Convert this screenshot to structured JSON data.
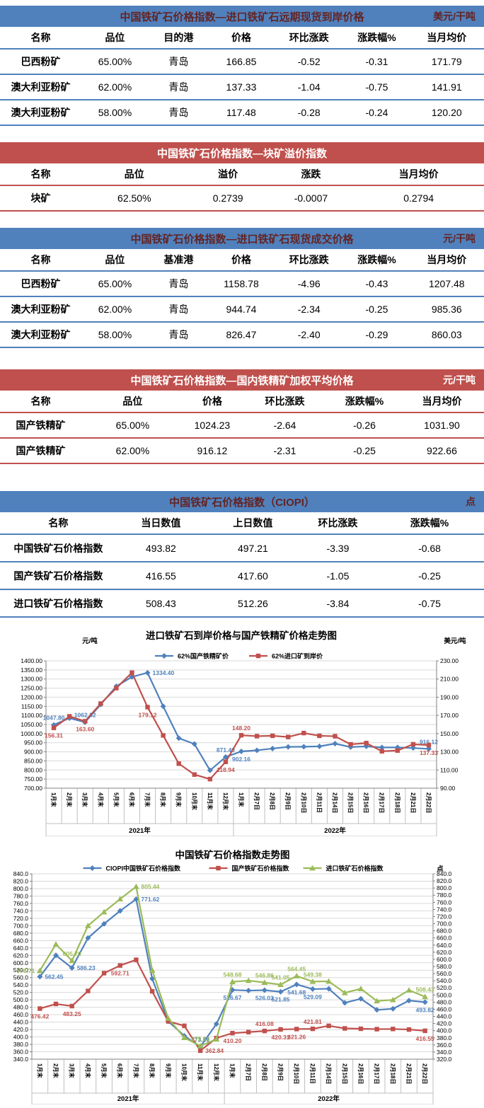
{
  "tables": [
    {
      "theme": "blue",
      "title": "中国铁矿石价格指数—进口铁矿石远期现货到岸价格",
      "unit": "美元/干吨",
      "columns": [
        "名称",
        "品位",
        "目的港",
        "价格",
        "环比涨跌",
        "涨跌幅%",
        "当月均价"
      ],
      "rows": [
        [
          "巴西粉矿",
          "65.00%",
          "青岛",
          "166.85",
          "-0.52",
          "-0.31",
          "171.79"
        ],
        [
          "澳大利亚粉矿",
          "62.00%",
          "青岛",
          "137.33",
          "-1.04",
          "-0.75",
          "141.91"
        ],
        [
          "澳大利亚粉矿",
          "58.00%",
          "青岛",
          "117.48",
          "-0.28",
          "-0.24",
          "120.20"
        ]
      ]
    },
    {
      "theme": "red",
      "title": "中国铁矿石价格指数—块矿溢价指数",
      "unit": "",
      "columns": [
        "名称",
        "品位",
        "溢价",
        "涨跌",
        "当月均价"
      ],
      "rows": [
        [
          "块矿",
          "62.50%",
          "0.2739",
          "-0.0007",
          "0.2794"
        ]
      ]
    },
    {
      "theme": "blue",
      "title": "中国铁矿石价格指数—进口铁矿石现货成交价格",
      "unit": "元/干吨",
      "columns": [
        "名称",
        "品位",
        "基准港",
        "价格",
        "环比涨跌",
        "涨跌幅%",
        "当月均价"
      ],
      "rows": [
        [
          "巴西粉矿",
          "65.00%",
          "青岛",
          "1158.78",
          "-4.96",
          "-0.43",
          "1207.48"
        ],
        [
          "澳大利亚粉矿",
          "62.00%",
          "青岛",
          "944.74",
          "-2.34",
          "-0.25",
          "985.36"
        ],
        [
          "澳大利亚粉矿",
          "58.00%",
          "青岛",
          "826.47",
          "-2.40",
          "-0.29",
          "860.03"
        ]
      ]
    },
    {
      "theme": "red",
      "title": "中国铁矿石价格指数—国内铁精矿加权平均价格",
      "unit": "元/干吨",
      "columns": [
        "名称",
        "品位",
        "价格",
        "环比涨跌",
        "涨跌幅%",
        "当月均价"
      ],
      "rows": [
        [
          "国产铁精矿",
          "65.00%",
          "1024.23",
          "-2.64",
          "-0.26",
          "1031.90"
        ],
        [
          "国产铁精矿",
          "62.00%",
          "916.12",
          "-2.31",
          "-0.25",
          "922.66"
        ]
      ]
    },
    {
      "theme": "blue",
      "title": "中国铁矿石价格指数（CIOPI）",
      "unit": "点",
      "columns": [
        "名称",
        "当日数值",
        "上日数值",
        "环比涨跌",
        "涨跌幅%"
      ],
      "rows": [
        [
          "中国铁矿石价格指数",
          "493.82",
          "497.21",
          "-3.39",
          "-0.68"
        ],
        [
          "国产铁矿石价格指数",
          "416.55",
          "417.60",
          "-1.05",
          "-0.25"
        ],
        [
          "进口铁矿石价格指数",
          "508.43",
          "512.26",
          "-3.84",
          "-0.75"
        ]
      ]
    }
  ],
  "chart_data": [
    {
      "type": "line",
      "title": "进口铁矿石到岸价格与国产铁精矿价格走势图",
      "categories": [
        "1月末",
        "2月末",
        "3月末",
        "4月末",
        "5月末",
        "6月末",
        "7月末",
        "8月末",
        "9月末",
        "10月末",
        "11月末",
        "12月末",
        "1月末",
        "2月7日",
        "2月8日",
        "2月9日",
        "2月10日",
        "2月11日",
        "2月14日",
        "2月15日",
        "2月16日",
        "2月17日",
        "2月18日",
        "2月21日",
        "2月22日"
      ],
      "year_groups": [
        {
          "label": "2021年",
          "count": 12
        },
        {
          "label": "2022年",
          "count": 13
        }
      ],
      "left_axis": {
        "title": "元/吨",
        "min": 700,
        "max": 1400,
        "step": 50,
        "decimals": 2
      },
      "right_axis": {
        "title": "美元/吨",
        "min": 90,
        "max": 230,
        "step": 20,
        "decimals": 2
      },
      "grid": true,
      "legend_position": "top",
      "series": [
        {
          "name": "62%国产铁精矿价",
          "color": "#4F81BD",
          "marker": "diamond",
          "axis": "left",
          "values": [
            1047.8,
            1085,
            1062.82,
            1160,
            1260,
            1312,
            1334.4,
            1150,
            975,
            943,
            798,
            871.4,
            902.16,
            908,
            918,
            927,
            928,
            930,
            945,
            926,
            930,
            924,
            924,
            921,
            916.12
          ],
          "point_labels": [
            {
              "i": 0,
              "text": "1047.80",
              "pos": "above"
            },
            {
              "i": 2,
              "text": "1062.82",
              "pos": "above"
            },
            {
              "i": 6,
              "text": "1334.40",
              "pos": "right"
            },
            {
              "i": 11,
              "text": "871.40",
              "pos": "above"
            },
            {
              "i": 12,
              "text": "902.16",
              "pos": "below"
            },
            {
              "i": 24,
              "text": "916.12",
              "pos": "above"
            }
          ]
        },
        {
          "name": "62%进口矿到岸价",
          "color": "#C0504D",
          "marker": "square",
          "axis": "right",
          "values": [
            156.31,
            169,
            163.6,
            183,
            200,
            217,
            179.12,
            148,
            117,
            105,
            100,
            118.94,
            148.2,
            147.2,
            147.6,
            146.3,
            150.6,
            147.6,
            147.1,
            138.2,
            139.6,
            130.6,
            131.4,
            138.3,
            137.33
          ],
          "point_labels": [
            {
              "i": 0,
              "text": "156.31",
              "pos": "below"
            },
            {
              "i": 2,
              "text": "163.60",
              "pos": "below"
            },
            {
              "i": 6,
              "text": "179.12",
              "pos": "below"
            },
            {
              "i": 11,
              "text": "118.94",
              "pos": "below"
            },
            {
              "i": 12,
              "text": "148.20",
              "pos": "above"
            },
            {
              "i": 24,
              "text": "137.33",
              "pos": "below"
            }
          ]
        }
      ]
    },
    {
      "type": "line",
      "title": "中国铁矿石价格指数走势图",
      "categories": [
        "1月末",
        "2月末",
        "3月末",
        "4月末",
        "5月末",
        "6月末",
        "7月末",
        "8月末",
        "9月末",
        "10月末",
        "11月末",
        "12月末",
        "1月末",
        "2月7日",
        "2月8日",
        "2月9日",
        "2月10日",
        "2月11日",
        "2月14日",
        "2月15日",
        "2月16日",
        "2月17日",
        "2月18日",
        "2月21日",
        "2月22日"
      ],
      "year_groups": [
        {
          "label": "2021年",
          "count": 12
        },
        {
          "label": "2022年",
          "count": 13
        }
      ],
      "left_axis": {
        "title": "",
        "min": 340,
        "max": 840,
        "step": 20,
        "decimals": 1
      },
      "right_axis": {
        "title": "点",
        "min": 320,
        "max": 840,
        "step": 20,
        "decimals": 1
      },
      "grid": true,
      "legend_position": "top",
      "series": [
        {
          "name": "CIOPI中国铁矿石价格指数",
          "color": "#4F81BD",
          "marker": "diamond",
          "axis": "left",
          "values": [
            562.45,
            620,
            586.23,
            667,
            705,
            740,
            771.62,
            557,
            442,
            403,
            373.59,
            435,
            526.67,
            525,
            526.03,
            521.85,
            541.68,
            529.09,
            530,
            492,
            503,
            473,
            476,
            498,
            493.82
          ],
          "point_labels": [
            {
              "i": 0,
              "text": "562.45",
              "pos": "right"
            },
            {
              "i": 2,
              "text": "586.23",
              "pos": "right"
            },
            {
              "i": 6,
              "text": "771.62",
              "pos": "right"
            },
            {
              "i": 10,
              "text": "373.59",
              "pos": "above"
            },
            {
              "i": 12,
              "text": "526.67",
              "pos": "below"
            },
            {
              "i": 14,
              "text": "526.03",
              "pos": "below"
            },
            {
              "i": 15,
              "text": "521.85",
              "pos": "below"
            },
            {
              "i": 16,
              "text": "541.68",
              "pos": "below"
            },
            {
              "i": 17,
              "text": "529.09",
              "pos": "below"
            },
            {
              "i": 24,
              "text": "493.82",
              "pos": "below"
            }
          ]
        },
        {
          "name": "国产铁矿石价格指数",
          "color": "#C0504D",
          "marker": "square",
          "axis": "left",
          "values": [
            476.42,
            489,
            483.25,
            524,
            572,
            592.71,
            608,
            523,
            442,
            430,
            362.84,
            397,
            410.2,
            413,
            416.08,
            420.31,
            421.26,
            421.81,
            430,
            423,
            422,
            421,
            421.5,
            420,
            416.55
          ],
          "point_labels": [
            {
              "i": 0,
              "text": "476.42",
              "pos": "below"
            },
            {
              "i": 2,
              "text": "483.25",
              "pos": "below"
            },
            {
              "i": 5,
              "text": "592.71",
              "pos": "below"
            },
            {
              "i": 10,
              "text": "362.84",
              "pos": "right"
            },
            {
              "i": 12,
              "text": "410.20",
              "pos": "below"
            },
            {
              "i": 14,
              "text": "416.08",
              "pos": "above"
            },
            {
              "i": 15,
              "text": "420.31",
              "pos": "below"
            },
            {
              "i": 16,
              "text": "421.26",
              "pos": "below"
            },
            {
              "i": 17,
              "text": "421.81",
              "pos": "above"
            },
            {
              "i": 24,
              "text": "416.55",
              "pos": "below"
            }
          ]
        },
        {
          "name": "进口铁矿石价格指数",
          "color": "#9BBB59",
          "marker": "triangle",
          "axis": "left",
          "values": [
            578.71,
            650,
            605.7,
            700,
            737,
            772,
            805.44,
            580,
            450,
            398,
            375.63,
            394,
            548.68,
            552,
            546.86,
            541.05,
            564.45,
            549.38,
            550,
            519,
            530,
            497,
            500,
            526,
            508.43
          ],
          "point_labels": [
            {
              "i": 0,
              "text": "578.71",
              "pos": "left"
            },
            {
              "i": 2,
              "text": "605.70",
              "pos": "above"
            },
            {
              "i": 6,
              "text": "805.44",
              "pos": "right"
            },
            {
              "i": 10,
              "text": "375.63",
              "pos": "above"
            },
            {
              "i": 12,
              "text": "548.68",
              "pos": "above"
            },
            {
              "i": 14,
              "text": "546.86",
              "pos": "above"
            },
            {
              "i": 15,
              "text": "541.05",
              "pos": "above"
            },
            {
              "i": 16,
              "text": "564.45",
              "pos": "above"
            },
            {
              "i": 17,
              "text": "549.38",
              "pos": "above"
            },
            {
              "i": 24,
              "text": "508.43",
              "pos": "above"
            }
          ]
        }
      ]
    }
  ]
}
